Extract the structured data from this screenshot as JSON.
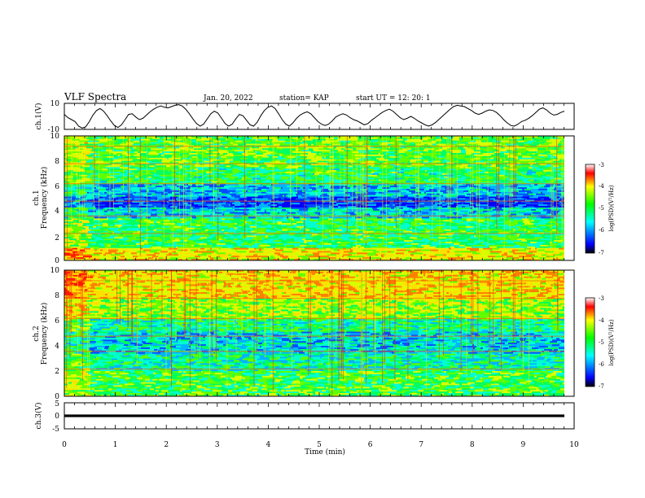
{
  "header": {
    "title": "VLF Spectra",
    "date": "Jan. 20, 2022",
    "station": "station= KAP",
    "start": "start  UT  =   12: 20: 1"
  },
  "chart_data": [
    {
      "type": "line",
      "name": "ch1-waveform",
      "ylabel": "ch.1(V)",
      "ylim": [
        -10,
        10
      ],
      "yticks": [
        "10",
        "-10"
      ],
      "xlim": [
        0,
        10
      ],
      "y": [
        1.5,
        -1.0,
        -2.5,
        -4.0,
        -7.5,
        -9.0,
        -8.0,
        -4.0,
        1.0,
        4.5,
        6.0,
        4.0,
        0.5,
        -3.5,
        -7.0,
        -8.5,
        -6.5,
        -2.5,
        1.5,
        2.0,
        -0.5,
        -2.5,
        -1.5,
        1.0,
        3.5,
        5.5,
        7.0,
        8.0,
        7.0,
        6.5,
        7.5,
        8.5,
        9.0,
        8.0,
        5.5,
        2.0,
        -2.0,
        -5.5,
        -7.5,
        -6.0,
        -2.0,
        2.0,
        4.0,
        2.5,
        -1.5,
        -5.5,
        -7.5,
        -6.0,
        -2.0,
        1.5,
        0.5,
        -3.0,
        -6.5,
        -7.5,
        -4.5,
        0.5,
        4.5,
        7.0,
        8.0,
        6.0,
        2.0,
        -2.5,
        -6.0,
        -7.5,
        -5.0,
        -1.5,
        1.0,
        2.5,
        3.5,
        2.0,
        -1.0,
        -4.0,
        -6.0,
        -7.0,
        -6.0,
        -3.5,
        -0.5,
        1.0,
        2.0,
        1.0,
        -1.0,
        -2.5,
        -3.5,
        -5.0,
        -6.5,
        -5.5,
        -3.0,
        -1.0,
        1.0,
        3.0,
        4.5,
        5.5,
        4.0,
        1.5,
        -1.0,
        -2.5,
        -1.5,
        0.0,
        -1.5,
        -3.5,
        -5.0,
        -6.5,
        -7.5,
        -6.5,
        -4.5,
        -2.0,
        0.5,
        3.0,
        5.5,
        7.5,
        8.5,
        8.0,
        7.5,
        6.0,
        4.5,
        2.5,
        1.5,
        2.5,
        4.0,
        5.0,
        4.5,
        3.0,
        0.5,
        -2.5,
        -5.0,
        -7.0,
        -7.5,
        -6.0,
        -4.0,
        -3.0,
        -1.5,
        0.5,
        3.0,
        5.5,
        6.5,
        5.0,
        2.5,
        1.0,
        1.5,
        3.0,
        4.0
      ]
    },
    {
      "type": "heatmap",
      "name": "ch2-spectrogram-top",
      "ylabel": "ch.1\nFrequency (kHz)",
      "ylim": [
        0,
        10
      ],
      "yticks": [
        "0",
        "2",
        "4",
        "6",
        "8",
        "10"
      ],
      "xlim": [
        0,
        10
      ],
      "colorbar": {
        "label": "log(PSD)(V²/Hz)",
        "range": [
          -7,
          -3
        ],
        "ticks": [
          "-3",
          "-4",
          "-5",
          "-6",
          "-7"
        ]
      }
    },
    {
      "type": "heatmap",
      "name": "ch2-spectrogram-bottom",
      "ylabel": "ch.2\nFrequency (kHz)",
      "ylim": [
        0,
        10
      ],
      "yticks": [
        "0",
        "2",
        "4",
        "6",
        "8",
        "10"
      ],
      "xlim": [
        0,
        10
      ],
      "colorbar": {
        "label": "log(PSD)(V²/Hz)",
        "range": [
          -7,
          -3
        ],
        "ticks": [
          "-3",
          "-4",
          "-5",
          "-6",
          "-7"
        ]
      }
    },
    {
      "type": "line",
      "name": "ch3-waveform",
      "ylabel": "ch.3(V)",
      "ylim": [
        -5,
        5
      ],
      "yticks": [
        "5",
        "0",
        "-5"
      ],
      "xlim": [
        0,
        10
      ],
      "band": [
        -0.5,
        0.5
      ]
    }
  ],
  "xaxis": {
    "label": "Time (min)",
    "ticks": [
      "0",
      "1",
      "2",
      "3",
      "4",
      "5",
      "6",
      "7",
      "8",
      "9",
      "10"
    ]
  }
}
